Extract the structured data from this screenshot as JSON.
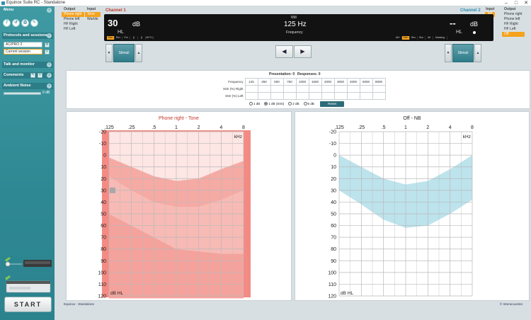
{
  "window": {
    "title": "Equinox Suite RC - Standalone"
  },
  "sidebar": {
    "menu_label": "Menu",
    "protocols_label": "Protocols and sessions",
    "protocol_value": "AC/PRO 2",
    "session_value": "Current session",
    "talk_label": "Talk and monitor",
    "comments_label": "Comments",
    "ambient_label": "Ambient Noise",
    "ambient_value": "0 dB",
    "start_label": "START"
  },
  "ch1_options": {
    "output_header": "Output",
    "outputs": [
      "Phone right",
      "Phone left",
      "HF Right",
      "HF Left"
    ],
    "input_header": "Input",
    "inputs": [
      "Tone",
      "Warble"
    ]
  },
  "ch2_options": {
    "input_header": "Input",
    "inputs": [
      "NB",
      "WN"
    ],
    "output_header": "Output",
    "outputs": [
      "Phone right",
      "Phone left",
      "HF Right",
      "HF Left",
      "Off"
    ]
  },
  "display": {
    "channel1_label": "Channel 1",
    "channel2_label": "Channel 2",
    "ch1_level": "30",
    "ch1_unit": "dB",
    "ch1_scale": "HL",
    "freq_value": "125 Hz",
    "freq_label": "Frequency",
    "top_label": "NM",
    "ch2_level": "--",
    "ch2_unit": "dB",
    "ch2_scale": "HL",
    "ch1_modes": [
      "Man",
      "Rev",
      "Pul",
      "∫∫",
      "∫∫",
      "Bi+Tx"
    ],
    "ch2_modes": [
      "Alt+",
      "Man",
      "Rev",
      "Sim",
      "Alt",
      "Masking"
    ],
    "stim_label": "Stimuli"
  },
  "panel": {
    "presentation_label": "Presentation: 0",
    "responses_label": "Responses: 0",
    "frequency_header": "Frequency",
    "frequencies": [
      "125",
      "250",
      "500",
      "750",
      "1000",
      "1500",
      "2000",
      "3000",
      "4000",
      "6000",
      "8000"
    ],
    "row_right": "SISI (%) Right",
    "row_left": "SISI (%) Left",
    "steps": [
      "1 dB",
      "1 dB (SISI)",
      "2 dB",
      "5 dB"
    ],
    "reset_label": "Reset"
  },
  "audiogram_left": {
    "title": "Phone right - Tone",
    "unit_x": "kHz",
    "unit_y": "dB HL",
    "x_ticks": [
      ".125",
      ".25",
      ".5",
      "1",
      "2",
      "4",
      "8"
    ],
    "y_ticks": [
      "-20",
      "-10",
      "0",
      "10",
      "20",
      "30",
      "40",
      "50",
      "60",
      "70",
      "80",
      "90",
      "100",
      "110",
      "120"
    ],
    "current_point": {
      "freq": "125",
      "db": 30
    }
  },
  "audiogram_right": {
    "title": "Off - NB",
    "unit_x": "kHz",
    "unit_y": "dB HL",
    "x_ticks": [
      ".125",
      ".25",
      ".5",
      "1",
      "2",
      "4",
      "8"
    ],
    "y_ticks": [
      "-20",
      "-10",
      "0",
      "10",
      "20",
      "30",
      "40",
      "50",
      "60",
      "70",
      "80",
      "90",
      "100",
      "110",
      "120"
    ]
  },
  "status": {
    "left": "Equinox - Standalone",
    "right": "© Interacoustics"
  },
  "colors": {
    "accent": "#f5a21d",
    "teal": "#2e8893",
    "red_area": "#f29b96",
    "blue_area": "#bde3ec"
  }
}
